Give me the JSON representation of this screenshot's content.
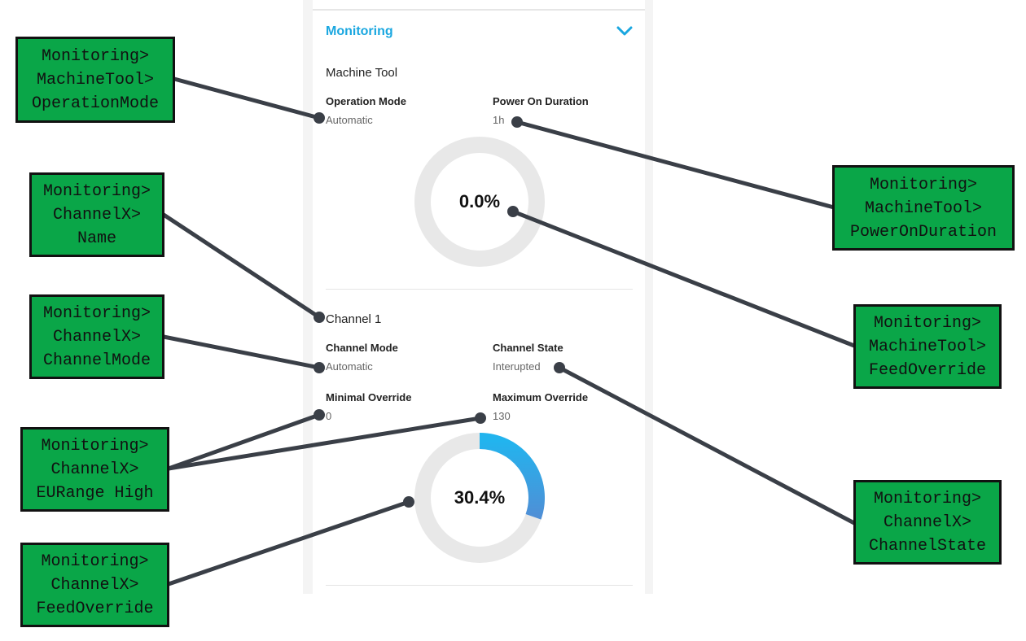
{
  "section": {
    "title": "Monitoring",
    "toggle_icon": "chevron-down-icon",
    "accent_color": "#1aa7e0"
  },
  "machine_tool": {
    "title": "Machine Tool",
    "operation_mode_label": "Operation Mode",
    "operation_mode_value": "Automatic",
    "power_on_label": "Power On Duration",
    "power_on_value": "1h",
    "feed_override_text": "0.0%",
    "feed_override_percent": 0.0
  },
  "channel": {
    "title": "Channel 1",
    "mode_label": "Channel Mode",
    "mode_value": "Automatic",
    "state_label": "Channel State",
    "state_value": "Interupted",
    "min_override_label": "Minimal Override",
    "min_override_value": "0",
    "max_override_label": "Maximum Override",
    "max_override_value": "130",
    "feed_override_text": "30.4%",
    "feed_override_percent": 30.4
  },
  "callouts": {
    "op_mode": [
      "Monitoring>",
      "MachineTool>",
      "OperationMode"
    ],
    "name": [
      "Monitoring>",
      "ChannelX>",
      "Name"
    ],
    "channel_mode": [
      "Monitoring>",
      "ChannelX>",
      "ChannelMode"
    ],
    "eurange": [
      "Monitoring>",
      "ChannelX>",
      "EURange High"
    ],
    "ch_feed": [
      "Monitoring>",
      "ChannelX>",
      "FeedOverride"
    ],
    "power_on": [
      "Monitoring>",
      "MachineTool>",
      "PowerOnDuration"
    ],
    "mt_feed": [
      "Monitoring>",
      "MachineTool>",
      "FeedOverride"
    ],
    "channel_state": [
      "Monitoring>",
      "ChannelX>",
      "ChannelState"
    ]
  },
  "colors": {
    "callout_bg": "#0aa648",
    "connector": "#3a3f47",
    "gauge_track": "#e8e8e8"
  }
}
